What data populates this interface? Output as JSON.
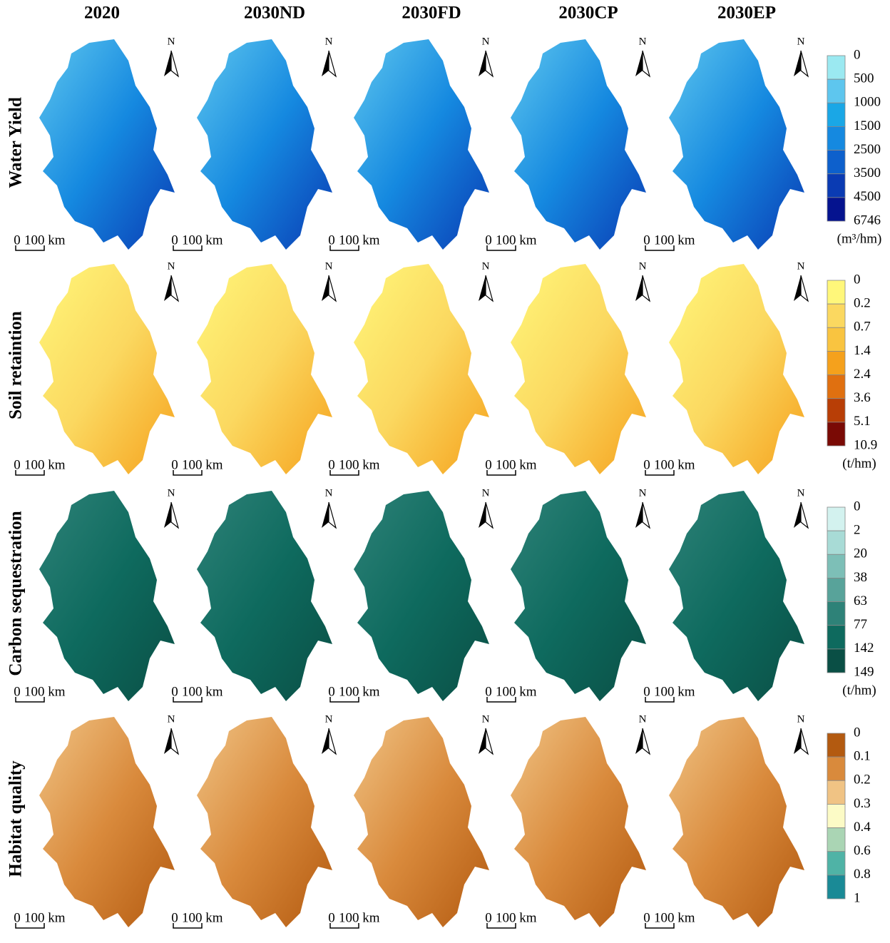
{
  "columns": [
    "2020",
    "2030ND",
    "2030FD",
    "2030CP",
    "2030EP"
  ],
  "north": "N",
  "scale_bar": {
    "start": "0",
    "end": "100 km"
  },
  "rows": [
    {
      "label": "Water Yield",
      "legend": {
        "labels": [
          "0",
          "500",
          "1000",
          "1500",
          "2500",
          "3500",
          "4500",
          "6746"
        ],
        "colors": [
          "#9be9f1",
          "#5ec6ee",
          "#1aa7e6",
          "#1589e0",
          "#0d60cc",
          "#0a3bb3",
          "#05138f"
        ],
        "unit": "(m³/hm)"
      }
    },
    {
      "label": "Soil retaintion",
      "legend": {
        "labels": [
          "0",
          "0.2",
          "0.7",
          "1.4",
          "2.4",
          "3.6",
          "5.1",
          "10.9"
        ],
        "colors": [
          "#fff77a",
          "#fbd860",
          "#f9c440",
          "#f5a11c",
          "#e07010",
          "#b83e06",
          "#7a0a05"
        ],
        "unit": "(t/hm)"
      }
    },
    {
      "label": "Carbon sequestration",
      "legend": {
        "labels": [
          "0",
          "2",
          "20",
          "38",
          "63",
          "77",
          "142",
          "149"
        ],
        "colors": [
          "#d3f2ef",
          "#a8dbd6",
          "#7dbfb7",
          "#58a39a",
          "#2e8278",
          "#0e6a5e",
          "#0a4f45"
        ],
        "unit": "(t/hm)"
      }
    },
    {
      "label": "Habitat quality",
      "legend": {
        "labels": [
          "0",
          "0.1",
          "0.2",
          "0.3",
          "0.4",
          "0.6",
          "0.8",
          "1"
        ],
        "colors": [
          "#b35a10",
          "#d98a3c",
          "#f0c384",
          "#fcfbc6",
          "#aad5b4",
          "#4fb3a6",
          "#1a8a96"
        ],
        "unit": null
      }
    }
  ]
}
